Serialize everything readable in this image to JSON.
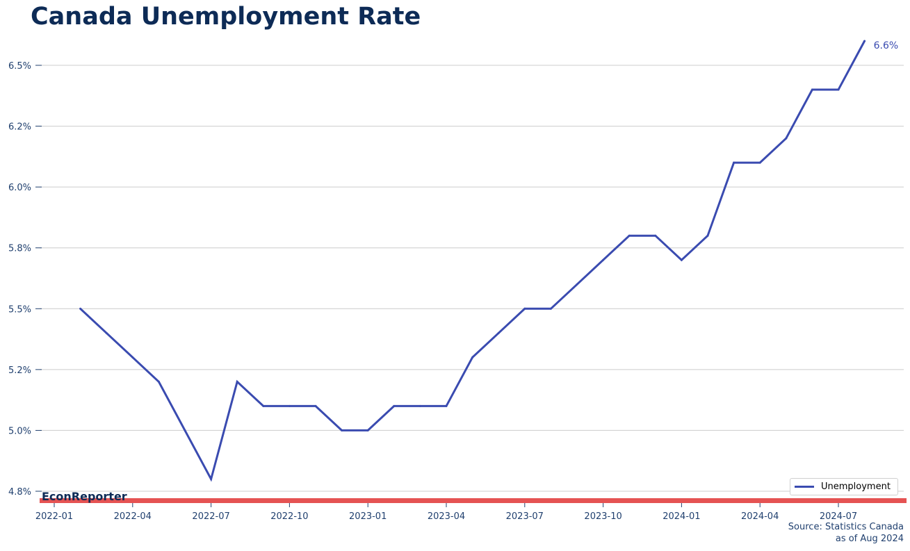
{
  "title": "Canada Unemployment Rate",
  "brand": "EconReporter",
  "source_line1": "Source: Statistics Canada",
  "source_line2": "as of Aug 2024",
  "colors": {
    "line": "#3a4bb0",
    "title": "#0d2b56",
    "accent_bar": "#e55353",
    "grid": "#cccccc"
  },
  "chart_data": {
    "type": "line",
    "title": "Canada Unemployment Rate",
    "xlabel": "",
    "ylabel": "",
    "x": [
      "2022-02",
      "2022-03",
      "2022-04",
      "2022-05",
      "2022-06",
      "2022-07",
      "2022-08",
      "2022-09",
      "2022-10",
      "2022-11",
      "2022-12",
      "2023-01",
      "2023-02",
      "2023-03",
      "2023-04",
      "2023-05",
      "2023-06",
      "2023-07",
      "2023-08",
      "2023-09",
      "2023-10",
      "2023-11",
      "2023-12",
      "2024-01",
      "2024-02",
      "2024-03",
      "2024-04",
      "2024-05",
      "2024-06",
      "2024-07",
      "2024-08"
    ],
    "series": [
      {
        "name": "Unemployment",
        "values": [
          5.5,
          5.4,
          5.3,
          5.2,
          5.0,
          4.8,
          5.2,
          5.1,
          5.1,
          5.1,
          5.0,
          5.0,
          5.1,
          5.1,
          5.1,
          5.3,
          5.4,
          5.5,
          5.5,
          5.6,
          5.7,
          5.8,
          5.8,
          5.7,
          5.8,
          6.1,
          6.1,
          6.2,
          6.4,
          6.4,
          6.6
        ]
      }
    ],
    "x_ticks": [
      "2022-01",
      "2022-04",
      "2022-07",
      "2022-10",
      "2023-01",
      "2023-04",
      "2023-07",
      "2023-10",
      "2024-01",
      "2024-04",
      "2024-07"
    ],
    "y_ticks": [
      4.75,
      5.0,
      5.25,
      5.5,
      5.75,
      6.0,
      6.25,
      6.5
    ],
    "y_tick_labels": [
      "4.8%",
      "5.0%",
      "5.2%",
      "5.5%",
      "5.8%",
      "6.0%",
      "6.2%",
      "6.5%"
    ],
    "ylim": [
      4.7,
      6.6
    ],
    "end_label": "6.6%",
    "grid": "horizontal",
    "legend_position": "bottom-right"
  }
}
